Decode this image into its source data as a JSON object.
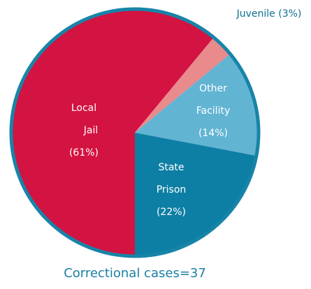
{
  "chart_data": {
    "type": "pie",
    "categories": [
      "Local Jail",
      "Juvenile",
      "Other Facility",
      "State Prison"
    ],
    "values": [
      61,
      3,
      14,
      22
    ],
    "value_labels": [
      "(61%)",
      "(3%)",
      "(14%)",
      "(22%)"
    ],
    "colors": [
      "#d31341",
      "#e98a8c",
      "#62b4d3",
      "#0e7fa4"
    ],
    "annotation": "Correctional cases=37"
  }
}
